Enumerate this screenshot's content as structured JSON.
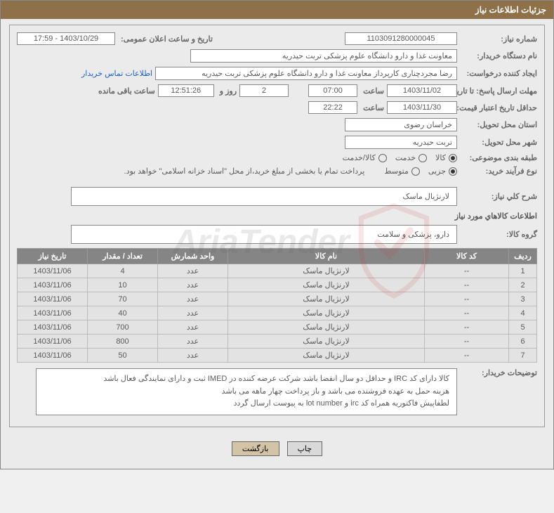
{
  "header": {
    "title": "جزئیات اطلاعات نیاز"
  },
  "fields": {
    "need_number_label": "شماره نیاز:",
    "need_number": "1103091280000045",
    "announce_label": "تاریخ و ساعت اعلان عمومی:",
    "announce_value": "1403/10/29 - 17:59",
    "buyer_org_label": "نام دستگاه خریدار:",
    "buyer_org": "معاونت غذا و دارو   دانشگاه علوم پزشکی تربت حیدریه",
    "requester_label": "ایجاد کننده درخواست:",
    "requester": "رضا مجردچناری کارپرداز معاونت غذا و دارو   دانشگاه علوم پزشکی تربت حیدریه",
    "contact_link": "اطلاعات تماس خریدار",
    "deadline_label": "مهلت ارسال پاسخ: تا تاریخ:",
    "deadline_date": "1403/11/02",
    "time_label": "ساعت",
    "deadline_time": "07:00",
    "days": "2",
    "days_label": "روز و",
    "countdown": "12:51:26",
    "remaining_label": "ساعت باقی مانده",
    "validity_label": "حداقل تاریخ اعتبار قیمت: تا تاریخ:",
    "validity_date": "1403/11/30",
    "validity_time": "22:22",
    "province_label": "استان محل تحویل:",
    "province": "خراسان رضوی",
    "city_label": "شهر محل تحویل:",
    "city": "تربت حیدریه",
    "category_label": "طبقه بندی موضوعی:",
    "cat_kala": "کالا",
    "cat_khadamat": "خدمت",
    "cat_both": "کالا/خدمت",
    "process_label": "نوع فرآیند خرید:",
    "proc_small": "جزیی",
    "proc_medium": "متوسط",
    "payment_note": "پرداخت تمام یا بخشی از مبلغ خرید،از محل \"اسناد خزانه اسلامی\" خواهد بود.",
    "overview_label": "شرح کلي نياز:",
    "overview": "لارنژیال ماسک",
    "goods_section": "اطلاعات کالاهاي مورد نياز",
    "group_label": "گروه کالا:",
    "group": "دارو، پزشکی و سلامت",
    "notes_label": "توضیحات خریدار:",
    "notes_l1": "کالا دارای کد IRC و حداقل دو سال انقضا باشد شرکت عرضه کننده در IMED ثبت و دارای نمایندگی فعال باشد",
    "notes_l2": "هزینه حمل به عهده فروشنده می باشد و باز پرداخت چهار ماهه می باشد",
    "notes_l3": "لطفاپیش فاکتوریه همراه کد irc و lot number به پیوست ارسال گردد"
  },
  "table": {
    "headers": [
      "ردیف",
      "کد کالا",
      "نام کالا",
      "واحد شمارش",
      "تعداد / مقدار",
      "تاریخ نیاز"
    ],
    "rows": [
      [
        "1",
        "--",
        "لارنژیال ماسک",
        "عدد",
        "4",
        "1403/11/06"
      ],
      [
        "2",
        "--",
        "لارنژیال ماسک",
        "عدد",
        "10",
        "1403/11/06"
      ],
      [
        "3",
        "--",
        "لارنژیال ماسک",
        "عدد",
        "70",
        "1403/11/06"
      ],
      [
        "4",
        "--",
        "لارنژیال ماسک",
        "عدد",
        "40",
        "1403/11/06"
      ],
      [
        "5",
        "--",
        "لارنژیال ماسک",
        "عدد",
        "700",
        "1403/11/06"
      ],
      [
        "6",
        "--",
        "لارنژیال ماسک",
        "عدد",
        "800",
        "1403/11/06"
      ],
      [
        "7",
        "--",
        "لارنژیال ماسک",
        "عدد",
        "50",
        "1403/11/06"
      ]
    ]
  },
  "buttons": {
    "print": "چاپ",
    "back": "بازگشت"
  },
  "colors": {
    "header_bg": "#8e7148",
    "th_bg": "#858585",
    "td_bg": "#e3e3e3",
    "page_bg": "#ebebeb"
  }
}
